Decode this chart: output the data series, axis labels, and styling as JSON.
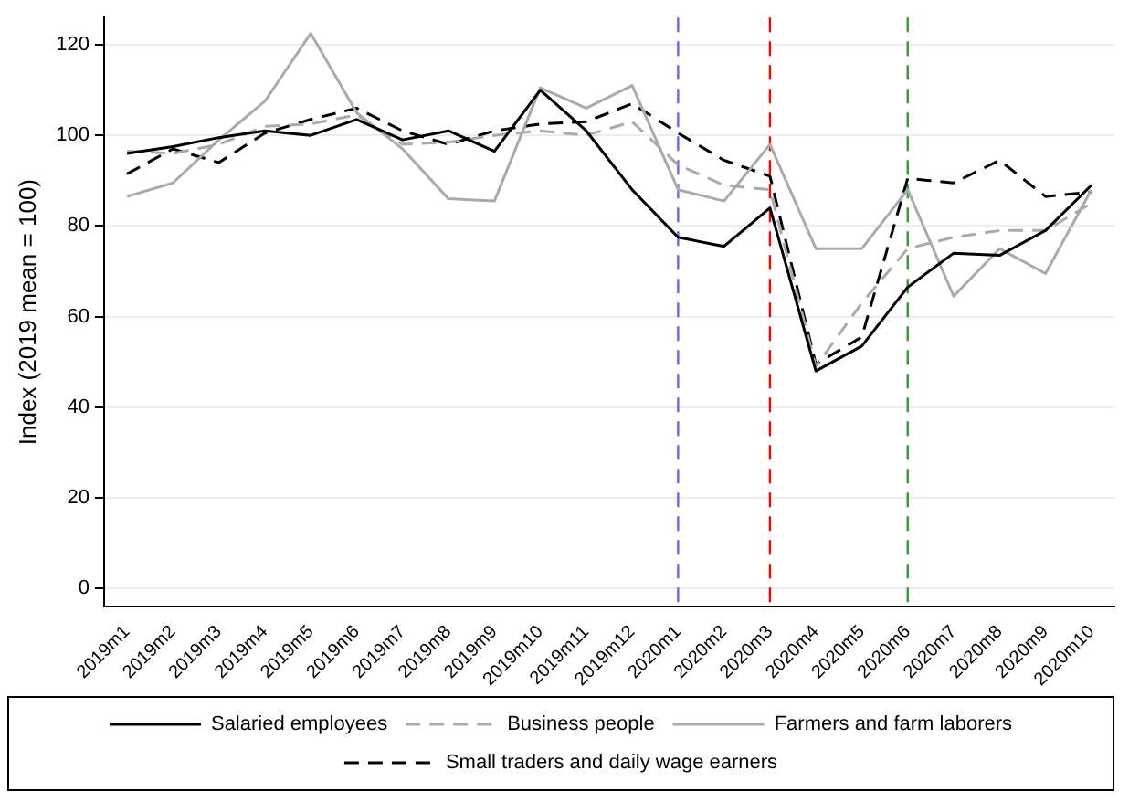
{
  "chart_data": {
    "type": "line",
    "ylabel": "Index (2019 mean = 100)",
    "categories": [
      "2019m1",
      "2019m2",
      "2019m3",
      "2019m4",
      "2019m5",
      "2019m6",
      "2019m7",
      "2019m8",
      "2019m9",
      "2019m10",
      "2019m11",
      "2019m12",
      "2020m1",
      "2020m2",
      "2020m3",
      "2020m4",
      "2020m5",
      "2020m6",
      "2020m7",
      "2020m8",
      "2020m9",
      "2020m10"
    ],
    "ylim": [
      -4,
      126
    ],
    "yticks": [
      0,
      20,
      40,
      60,
      80,
      100,
      120
    ],
    "grid": "y",
    "legend": "bottom",
    "marker": "none",
    "series": [
      {
        "name": "Salaried employees",
        "color": "#000000",
        "line_style": "solid",
        "values": [
          96,
          97.5,
          99.5,
          101,
          100,
          103.5,
          99,
          101,
          96.5,
          110,
          101,
          88,
          77.5,
          75.5,
          84,
          48,
          53.5,
          66.5,
          74,
          73.5,
          79,
          89
        ]
      },
      {
        "name": "Business people",
        "color": "#aaaaaa",
        "line_style": "dashed",
        "values": [
          96.5,
          96,
          98,
          102,
          102.5,
          104.5,
          98,
          98.5,
          100,
          101,
          100,
          103,
          93.5,
          89,
          88,
          49,
          63,
          75,
          77.5,
          79,
          79,
          85
        ]
      },
      {
        "name": "Farmers and farm laborers",
        "color": "#aaaaaa",
        "line_style": "solid",
        "values": [
          86.5,
          89.5,
          99,
          107.5,
          122.5,
          105,
          97,
          86,
          85.5,
          110.5,
          106,
          111,
          88,
          85.5,
          98,
          75,
          75,
          88,
          64.5,
          75,
          69.5,
          88
        ]
      },
      {
        "name": "Small traders and daily wage earners",
        "color": "#000000",
        "line_style": "dashed",
        "values": [
          91.5,
          97,
          94,
          100.5,
          103.5,
          106,
          101,
          98,
          101,
          102.5,
          103,
          107,
          100.5,
          94.5,
          91,
          49.5,
          55.5,
          90.5,
          89.5,
          94.5,
          86.5,
          87.5
        ]
      }
    ],
    "ref_lines": [
      {
        "axis": "x",
        "value": "2020m1",
        "color": "#6666ff",
        "line_style": "dashed"
      },
      {
        "axis": "x",
        "value": "2020m3",
        "color": "#ff0000",
        "line_style": "dashed"
      },
      {
        "axis": "x",
        "value": "2020m6",
        "color": "#339933",
        "line_style": "dashed"
      }
    ]
  }
}
